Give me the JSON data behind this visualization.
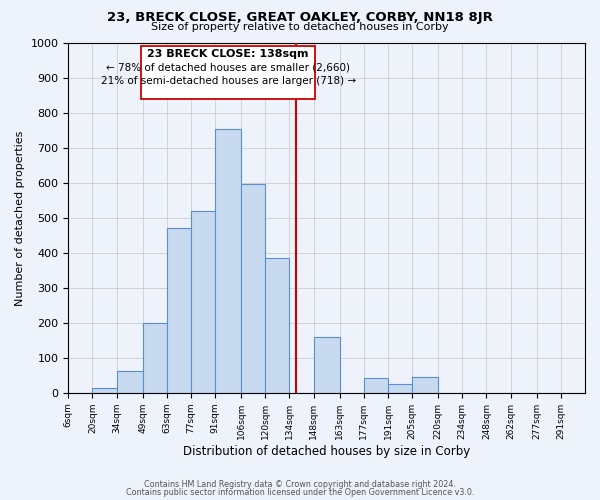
{
  "title": "23, BRECK CLOSE, GREAT OAKLEY, CORBY, NN18 8JR",
  "subtitle": "Size of property relative to detached houses in Corby",
  "xlabel": "Distribution of detached houses by size in Corby",
  "ylabel": "Number of detached properties",
  "bin_labels": [
    "6sqm",
    "20sqm",
    "34sqm",
    "49sqm",
    "63sqm",
    "77sqm",
    "91sqm",
    "106sqm",
    "120sqm",
    "134sqm",
    "148sqm",
    "163sqm",
    "177sqm",
    "191sqm",
    "205sqm",
    "220sqm",
    "234sqm",
    "248sqm",
    "262sqm",
    "277sqm",
    "291sqm"
  ],
  "bin_edges": [
    6,
    20,
    34,
    49,
    63,
    77,
    91,
    106,
    120,
    134,
    148,
    163,
    177,
    191,
    205,
    220,
    234,
    248,
    262,
    277,
    291,
    305
  ],
  "bar_heights": [
    0,
    15,
    62,
    200,
    470,
    520,
    755,
    598,
    385,
    0,
    160,
    0,
    42,
    25,
    45,
    0,
    0,
    0,
    0,
    0,
    0
  ],
  "bar_color": "#c8daf0",
  "bar_edgecolor": "#5b8fcc",
  "property_size": 138,
  "vline_color": "#cc0000",
  "annotation_title": "23 BRECK CLOSE: 138sqm",
  "annotation_line1": "← 78% of detached houses are smaller (2,660)",
  "annotation_line2": "21% of semi-detached houses are larger (718) →",
  "box_edgecolor": "#cc0000",
  "ylim": [
    0,
    1000
  ],
  "yticks": [
    0,
    100,
    200,
    300,
    400,
    500,
    600,
    700,
    800,
    900,
    1000
  ],
  "grid_color": "#cccccc",
  "footnote1": "Contains HM Land Registry data © Crown copyright and database right 2024.",
  "footnote2": "Contains public sector information licensed under the Open Government Licence v3.0.",
  "background_color": "#edf2fb",
  "plot_background": "#edf2fb"
}
